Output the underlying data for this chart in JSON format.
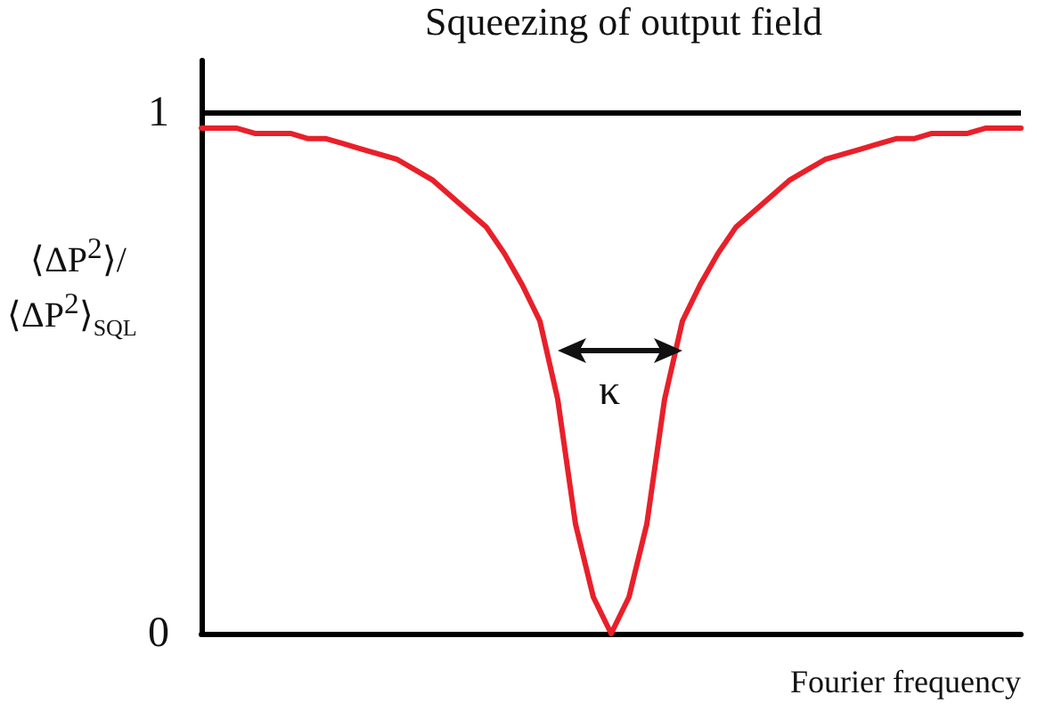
{
  "chart_data": {
    "type": "line",
    "title": "Squeezing of output field",
    "xlabel": "Fourier frequency",
    "ylabel": "⟨ΔP$^{2}$⟩/⟨ΔP$^{2}$⟩$_{SQL}$",
    "categories": [
      null,
      null,
      null,
      null,
      null,
      null,
      null,
      null,
      null,
      null,
      null,
      null,
      null,
      null,
      null,
      null,
      null,
      null,
      null,
      null,
      null,
      null,
      null,
      null,
      null,
      null,
      null,
      null,
      null,
      null,
      null,
      null,
      null,
      null,
      null,
      null,
      null,
      null,
      null,
      null,
      null,
      null,
      null,
      null,
      null,
      null,
      null
    ],
    "series": [
      {
        "color": "#e8202a",
        "values": [
          0.97,
          0.97,
          0.97,
          0.96,
          0.96,
          0.96,
          0.95,
          0.95,
          0.94,
          0.93,
          0.92,
          0.91,
          0.89,
          0.87,
          0.84,
          0.81,
          0.78,
          0.73,
          0.67,
          0.6,
          0.45,
          0.21,
          0.07,
          0,
          0.07,
          0.21,
          0.45,
          0.6,
          0.67,
          0.73,
          0.78,
          0.81,
          0.84,
          0.87,
          0.89,
          0.91,
          0.92,
          0.93,
          0.94,
          0.95,
          0.95,
          0.96,
          0.96,
          0.96,
          0.97,
          0.97,
          0.97
        ]
      }
    ],
    "ylim": [
      0,
      1.1
    ],
    "yticks": [
      0,
      1
    ],
    "tick_labels": "y",
    "marker": "none",
    "line_style": "solid",
    "ref_lines": [
      {
        "axis": "y",
        "value": 1,
        "color": "#000000"
      }
    ],
    "annotations": [
      "κ"
    ]
  }
}
